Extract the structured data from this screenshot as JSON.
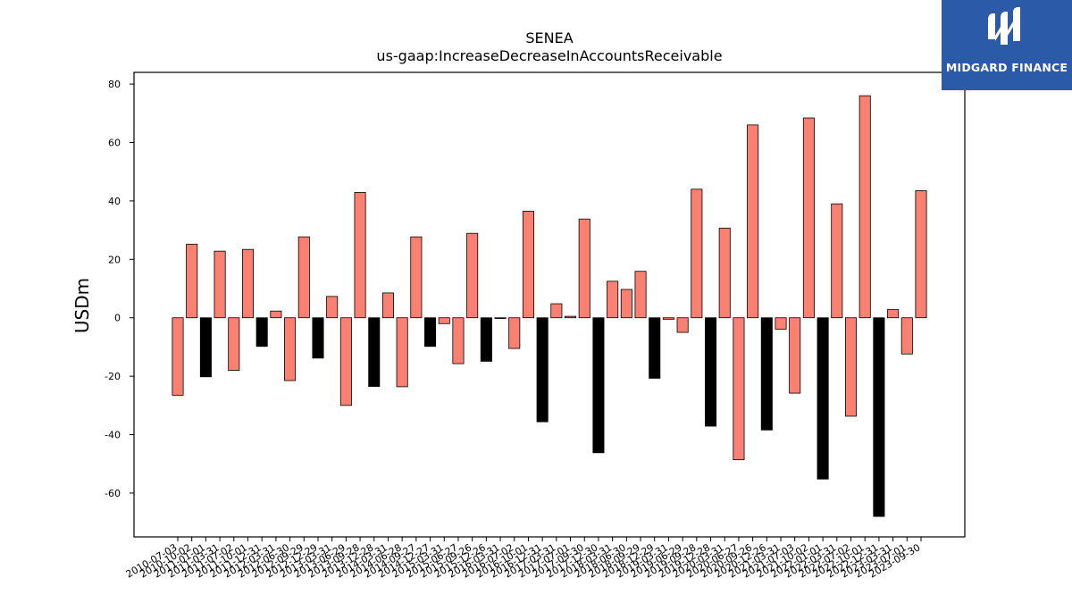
{
  "brand": {
    "name": "MIDGARD FINANCE",
    "bg_color": "#2b5aa8"
  },
  "chart_data": {
    "type": "bar",
    "title": "SENEA",
    "subtitle": "us-gaap:IncreaseDecreaseInAccountsReceivable",
    "ylabel": "USDm",
    "xlabel": "",
    "ylim": [
      -75,
      84
    ],
    "yticks": [
      -60,
      -40,
      -20,
      0,
      20,
      40,
      60,
      80
    ],
    "grid": false,
    "colors": {
      "salmon": "#fa8072",
      "black": "#000000"
    },
    "categories": [
      "2010-07-03",
      "2010-10-02",
      "2011-01-01",
      "2011-03-31",
      "2011-07-02",
      "2011-10-01",
      "2011-12-31",
      "2012-03-31",
      "2012-06-30",
      "2012-09-29",
      "2012-12-29",
      "2013-03-31",
      "2013-06-29",
      "2013-09-28",
      "2013-12-28",
      "2014-03-31",
      "2014-06-28",
      "2014-09-27",
      "2014-12-27",
      "2015-03-31",
      "2015-06-27",
      "2015-09-26",
      "2015-12-26",
      "2016-03-31",
      "2016-07-02",
      "2016-10-01",
      "2016-12-31",
      "2017-03-31",
      "2017-07-01",
      "2017-09-30",
      "2017-12-30",
      "2018-03-31",
      "2018-06-30",
      "2018-09-29",
      "2018-12-29",
      "2019-03-31",
      "2019-06-29",
      "2019-09-28",
      "2019-12-28",
      "2020-03-31",
      "2020-06-27",
      "2020-09-26",
      "2020-12-26",
      "2021-03-31",
      "2021-07-03",
      "2021-10-02",
      "2022-01-01",
      "2022-03-31",
      "2022-07-02",
      "2022-10-01",
      "2022-12-31",
      "2023-03-31",
      "2023-07-01",
      "2023-09-30"
    ],
    "values": [
      -26.5,
      25.2,
      -20.2,
      22.8,
      -18.0,
      23.4,
      -9.8,
      2.3,
      -21.5,
      27.7,
      -13.8,
      7.3,
      -30.0,
      42.9,
      -23.5,
      8.5,
      -23.6,
      27.7,
      -9.8,
      -2.0,
      -15.7,
      28.9,
      -14.9,
      0.0,
      -10.5,
      36.5,
      -35.6,
      4.8,
      0.5,
      33.8,
      -46.2,
      12.5,
      9.7,
      15.9,
      -20.7,
      -0.5,
      -5.0,
      44.0,
      -37.1,
      30.7,
      -48.6,
      66.0,
      -38.4,
      -3.9,
      -25.8,
      68.4,
      -55.2,
      39.0,
      -33.7,
      76.0,
      -68.0,
      2.8,
      -12.4,
      43.5
    ],
    "bar_colors": [
      "salmon",
      "salmon",
      "black",
      "salmon",
      "salmon",
      "salmon",
      "black",
      "salmon",
      "salmon",
      "salmon",
      "black",
      "salmon",
      "salmon",
      "salmon",
      "black",
      "salmon",
      "salmon",
      "salmon",
      "black",
      "salmon",
      "salmon",
      "salmon",
      "black",
      "salmon",
      "salmon",
      "salmon",
      "black",
      "salmon",
      "salmon",
      "salmon",
      "black",
      "salmon",
      "salmon",
      "salmon",
      "black",
      "salmon",
      "salmon",
      "salmon",
      "black",
      "salmon",
      "salmon",
      "salmon",
      "black",
      "salmon",
      "salmon",
      "salmon",
      "black",
      "salmon",
      "salmon",
      "salmon",
      "black",
      "salmon",
      "salmon",
      "salmon"
    ]
  }
}
